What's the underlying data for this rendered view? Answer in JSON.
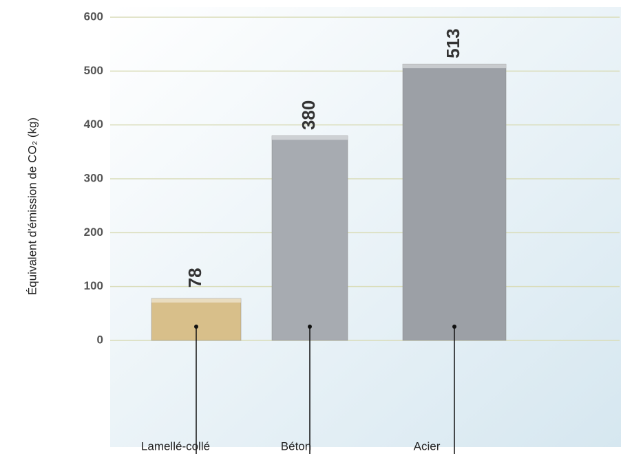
{
  "chart_data": {
    "type": "bar",
    "y_label": "Équivalent d'émission de CO₂ (kg)",
    "categories": [
      "Lamellé-collé",
      "Béton",
      "Acier"
    ],
    "values": [
      78,
      380,
      513
    ],
    "colors": [
      "#d8bf8a",
      "#a7abb1",
      "#9ca0a6"
    ],
    "ylim": [
      0,
      600
    ],
    "yticks": [
      0,
      100,
      200,
      300,
      400,
      500,
      600
    ],
    "grid": true
  }
}
